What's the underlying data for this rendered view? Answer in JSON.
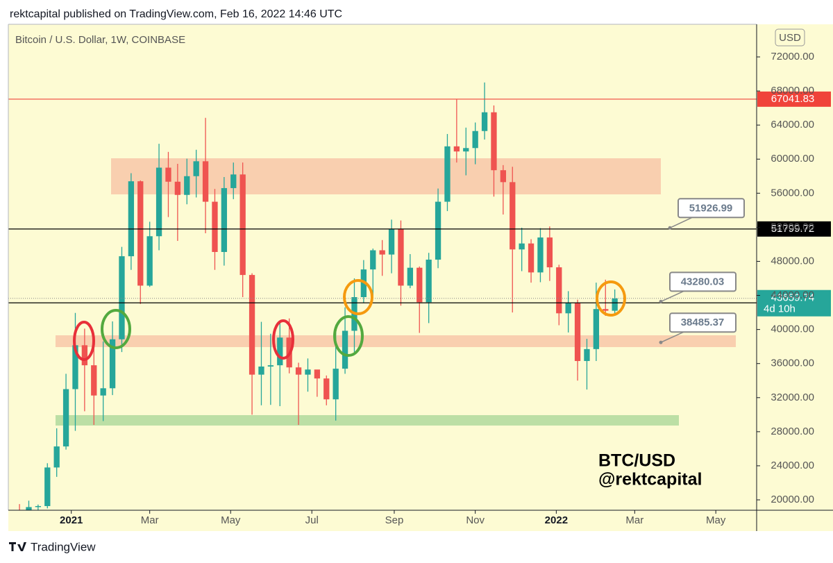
{
  "header": "rektcapital published on TradingView.com, Feb 16, 2022 14:46 UTC",
  "footer": "TradingView",
  "chart_data": {
    "type": "candlestick",
    "title": "Bitcoin / U.S. Dollar, 1W, COINBASE",
    "currency": "USD",
    "watermark": [
      "BTC/USD",
      "@rektcapital"
    ],
    "up_color": "#26a69a",
    "down_color": "#ef5350",
    "open": [
      18400,
      18200,
      19150,
      19270,
      23800,
      26270,
      33000,
      38150,
      35800,
      32250,
      33100,
      38850,
      48600,
      57400,
      45150,
      50950,
      59000,
      57350,
      55800,
      58000,
      59750,
      55000,
      49100,
      56600,
      58200,
      46400,
      34700,
      35650,
      35800,
      39050,
      35550,
      34700,
      35300,
      34250,
      31800,
      35400,
      39850,
      43800,
      47050,
      49300,
      48800,
      51800,
      45150,
      47250,
      43200,
      48200,
      55000,
      61500,
      60900,
      61300,
      63300,
      65500,
      58700,
      57300,
      49400,
      50100,
      46700,
      50800,
      47300,
      41900,
      43100,
      36300,
      37700,
      42400,
      42200
    ],
    "high": [
      19500,
      19900,
      19450,
      24300,
      28400,
      34800,
      41950,
      40100,
      37850,
      38600,
      40950,
      49700,
      58350,
      57500,
      52650,
      61800,
      60850,
      59450,
      60050,
      61100,
      64850,
      56500,
      57900,
      59600,
      59600,
      46600,
      40900,
      39500,
      40950,
      41300,
      36100,
      36600,
      35100,
      34600,
      40550,
      42600,
      46000,
      48150,
      49500,
      50500,
      52900,
      52800,
      48850,
      47400,
      49000,
      56550,
      62950,
      67000,
      63700,
      64300,
      69000,
      66300,
      59300,
      59100,
      51950,
      50600,
      51900,
      52100,
      47600,
      44500,
      43500,
      38900,
      45500,
      45850,
      44700
    ],
    "low": [
      16200,
      17600,
      17600,
      19000,
      22700,
      25900,
      28100,
      30400,
      28800,
      29250,
      32300,
      37350,
      47000,
      43000,
      45000,
      49300,
      53200,
      50400,
      54700,
      55500,
      51300,
      47000,
      47500,
      55300,
      43800,
      30000,
      31100,
      31150,
      31000,
      34850,
      28800,
      32700,
      32100,
      31100,
      29300,
      34800,
      37350,
      43100,
      43950,
      46300,
      46600,
      42800,
      44850,
      39600,
      40750,
      47200,
      53900,
      59600,
      58100,
      59400,
      62300,
      55600,
      53500,
      42000,
      46850,
      45500,
      45550,
      45700,
      40500,
      39650,
      34000,
      32950,
      36300,
      41600,
      41600
    ],
    "close": [
      18200,
      19150,
      19270,
      23800,
      26270,
      33000,
      38150,
      35800,
      32250,
      33100,
      38850,
      48600,
      57400,
      45150,
      50950,
      59000,
      57350,
      55800,
      58000,
      59750,
      55000,
      49100,
      56600,
      58200,
      46400,
      34700,
      35650,
      35800,
      39050,
      35550,
      34700,
      35300,
      34250,
      31800,
      35400,
      39850,
      43800,
      47050,
      49300,
      48800,
      51800,
      45150,
      47250,
      43200,
      48200,
      55000,
      61500,
      60900,
      61300,
      63300,
      65500,
      58700,
      57300,
      49400,
      50100,
      46700,
      50800,
      47300,
      41900,
      43100,
      36300,
      37700,
      42400,
      42200,
      43659.74
    ],
    "xlim": [
      -1.2,
      79.25
    ],
    "xticks": [
      {
        "value": 5.57,
        "label": "2021"
      },
      {
        "value": 14,
        "label": "Mar"
      },
      {
        "value": 22.7,
        "label": "May"
      },
      {
        "value": 31.43,
        "label": "Jul"
      },
      {
        "value": 40.29,
        "label": "Sep"
      },
      {
        "value": 49,
        "label": "Nov"
      },
      {
        "value": 57.71,
        "label": "2022"
      },
      {
        "value": 66.14,
        "label": "Mar"
      },
      {
        "value": 74.86,
        "label": "May"
      }
    ],
    "ylim": [
      18780,
      75830
    ],
    "yticks": [
      {
        "value": 20000,
        "label": "20000.00"
      },
      {
        "value": 24000,
        "label": "24000.00"
      },
      {
        "value": 28000,
        "label": "28000.00"
      },
      {
        "value": 32000,
        "label": "32000.00"
      },
      {
        "value": 36000,
        "label": "36000.00"
      },
      {
        "value": 40000,
        "label": "40000.00"
      },
      {
        "value": 44000,
        "label": "44000.00"
      },
      {
        "value": 48000,
        "label": "48000.00"
      },
      {
        "value": 52000,
        "label": "52000.00"
      },
      {
        "value": 56000,
        "label": "56000.00"
      },
      {
        "value": 60000,
        "label": "60000.00"
      },
      {
        "value": 64000,
        "label": "64000.00"
      },
      {
        "value": 68000,
        "label": "68000.00"
      },
      {
        "value": 72000,
        "label": "72000.00"
      }
    ],
    "levels": [
      {
        "value": 67041.83,
        "color": "#f0433a"
      },
      {
        "value": 51799.72,
        "color": "#000000"
      },
      {
        "value": 43127.17,
        "color": "#000000"
      }
    ],
    "current": {
      "value": 43659.74,
      "countdown": "4d 10h"
    },
    "callouts": [
      51926.99,
      43280.03,
      38485.37
    ]
  }
}
